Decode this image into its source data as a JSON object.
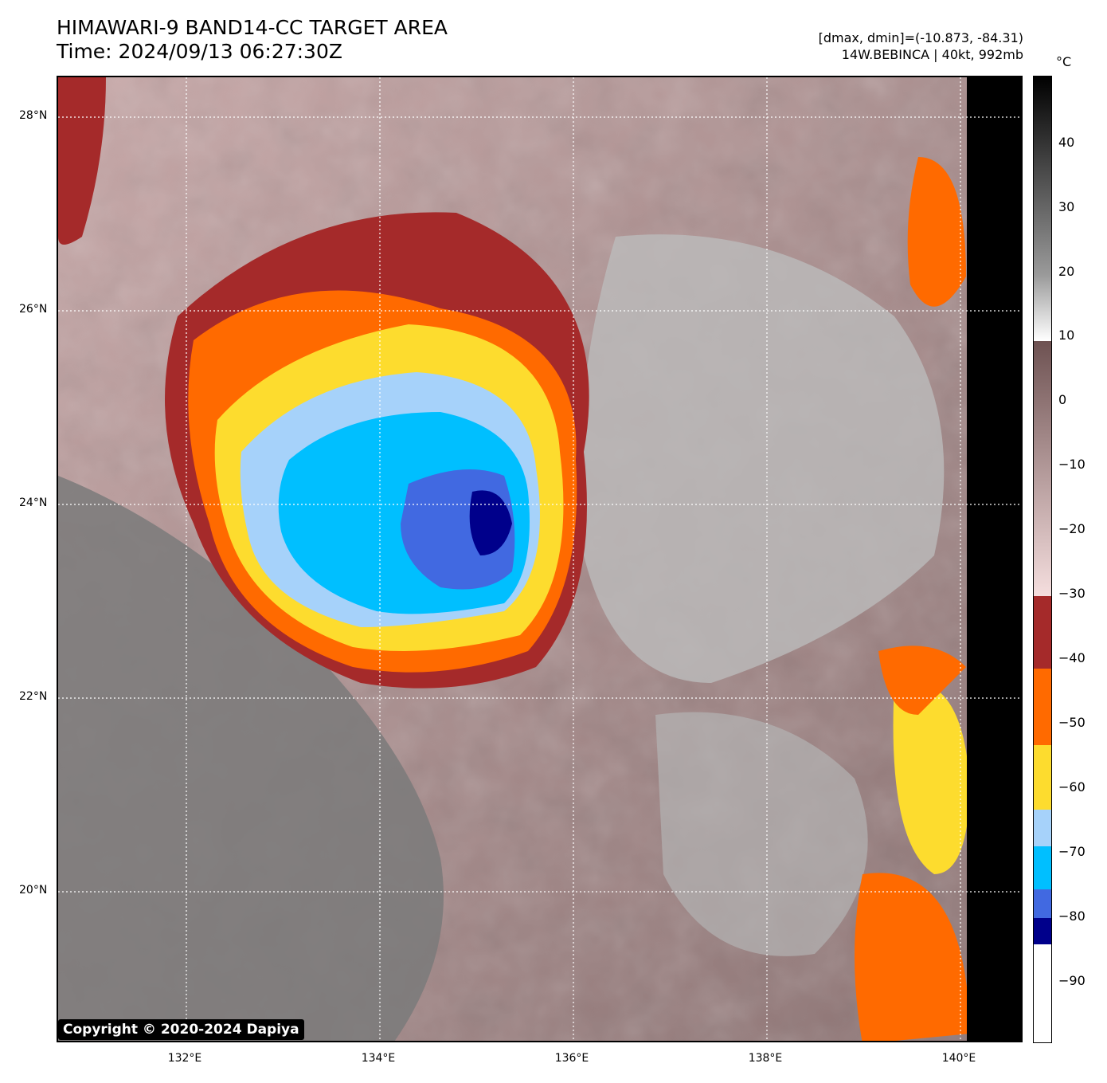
{
  "title_line1": "HIMAWARI-9 BAND14-CC TARGET AREA",
  "title_line2": "Time: 2024/09/13 06:27:30Z",
  "dminmax": "[dmax, dmin]=(-10.873, -84.31)",
  "storm": "14W.BEBINCA | 40kt, 992mb",
  "copyright": "Copyright © 2020-2024 Dapiya",
  "lat_labels": [
    "28°N",
    "26°N",
    "24°N",
    "22°N",
    "20°N"
  ],
  "lon_labels": [
    "132°E",
    "134°E",
    "136°E",
    "138°E",
    "140°E"
  ],
  "colorbar": {
    "unit": "°C",
    "ticks": [
      "40",
      "30",
      "20",
      "10",
      "0",
      "−10",
      "−20",
      "−30",
      "−40",
      "−50",
      "−60",
      "−70",
      "−80",
      "−90"
    ]
  },
  "colors": {
    "dark_red": "#a52a2a",
    "orange": "#ff6a00",
    "yellow": "#fddc2e",
    "light_blue": "#a6d2fa",
    "cyan": "#00bfff",
    "royal_blue": "#4169e1",
    "navy": "#00008b",
    "warm_cloud": "#8b6a6a",
    "gray": "#bcbcbc"
  }
}
